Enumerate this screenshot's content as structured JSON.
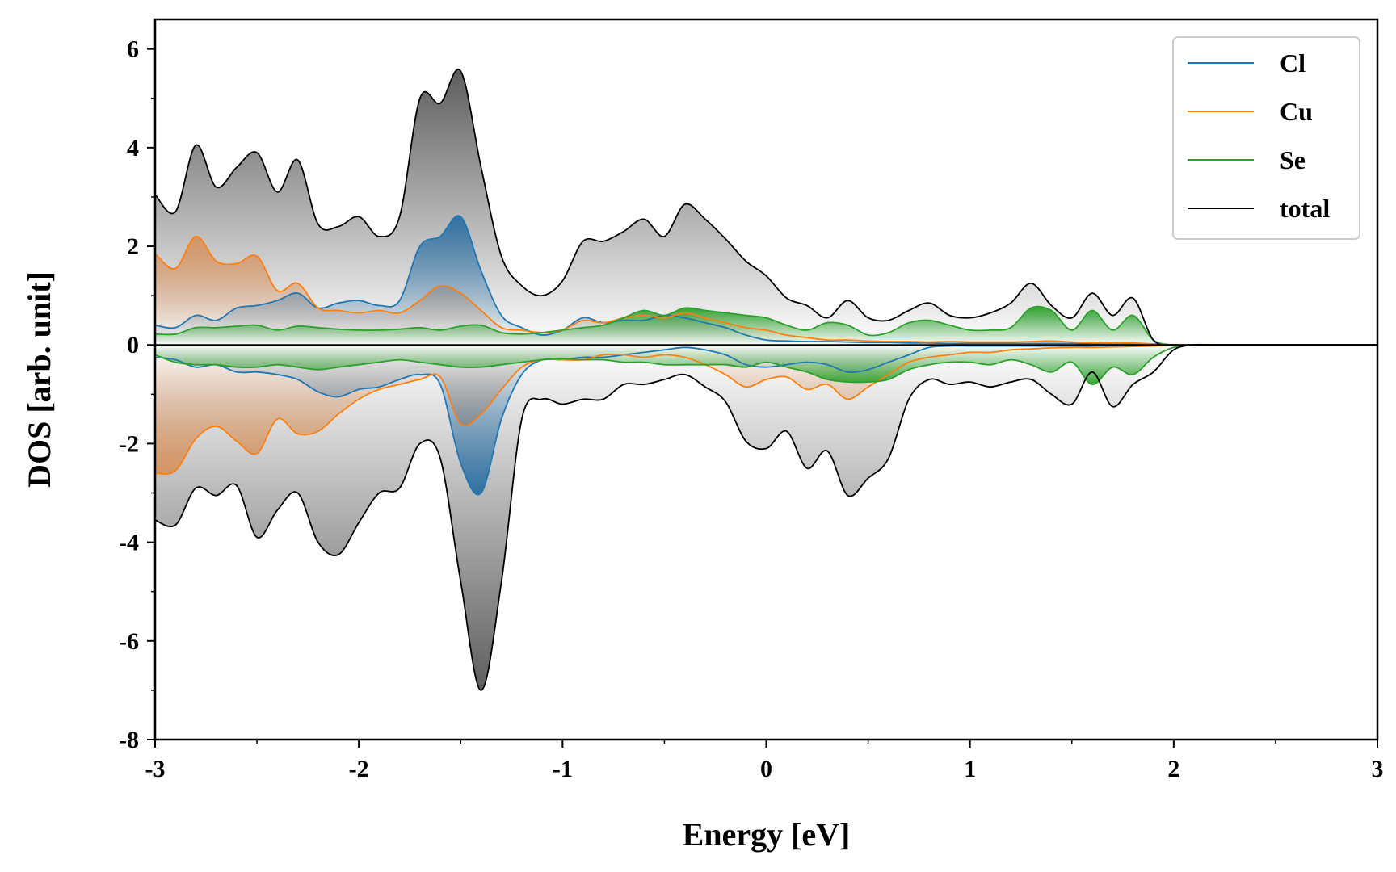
{
  "chart_data": {
    "type": "area",
    "xlabel": "Energy [eV]",
    "ylabel": "DOS [arb. unit]",
    "xlim": [
      -3,
      3
    ],
    "ylim": [
      -8,
      6.6
    ],
    "x_ticks": [
      -3,
      -2,
      -1,
      0,
      1,
      2,
      3
    ],
    "x_tick_labels": [
      "-3",
      "-2",
      "-1",
      "0",
      "1",
      "2",
      "3"
    ],
    "y_ticks": [
      -8,
      -6,
      -4,
      -2,
      0,
      2,
      4,
      6
    ],
    "y_tick_labels": [
      "-8",
      "-6",
      "-4",
      "-2",
      "0",
      "2",
      "4",
      "6"
    ],
    "legend_position": "top-right",
    "x": [
      -3.0,
      -2.9,
      -2.8,
      -2.7,
      -2.6,
      -2.5,
      -2.4,
      -2.3,
      -2.2,
      -2.1,
      -2.0,
      -1.9,
      -1.8,
      -1.7,
      -1.6,
      -1.5,
      -1.4,
      -1.3,
      -1.2,
      -1.1,
      -1.0,
      -0.9,
      -0.8,
      -0.7,
      -0.6,
      -0.5,
      -0.4,
      -0.3,
      -0.2,
      -0.1,
      0.0,
      0.1,
      0.2,
      0.3,
      0.4,
      0.5,
      0.6,
      0.7,
      0.8,
      0.9,
      1.0,
      1.1,
      1.2,
      1.3,
      1.4,
      1.5,
      1.6,
      1.7,
      1.8,
      1.9,
      2.0,
      2.1,
      2.2,
      2.5,
      3.0
    ],
    "series": [
      {
        "name": "Cl",
        "color": "#1f77b4",
        "up": [
          0.4,
          0.35,
          0.6,
          0.5,
          0.75,
          0.8,
          0.9,
          1.05,
          0.75,
          0.85,
          0.9,
          0.8,
          0.9,
          2.0,
          2.2,
          2.6,
          1.5,
          0.6,
          0.35,
          0.2,
          0.3,
          0.55,
          0.45,
          0.5,
          0.5,
          0.6,
          0.55,
          0.45,
          0.35,
          0.2,
          0.1,
          0.08,
          0.07,
          0.07,
          0.06,
          0.05,
          0.05,
          0.04,
          0.04,
          0.03,
          0.03,
          0.03,
          0.03,
          0.03,
          0.03,
          0.03,
          0.02,
          0.02,
          0.02,
          0.01,
          0.0,
          0.0,
          0.0,
          0.0,
          0.0
        ],
        "down": [
          -0.25,
          -0.3,
          -0.45,
          -0.4,
          -0.55,
          -0.55,
          -0.6,
          -0.7,
          -0.95,
          -1.05,
          -0.9,
          -0.85,
          -0.7,
          -0.6,
          -0.8,
          -2.4,
          -3.0,
          -1.5,
          -0.6,
          -0.3,
          -0.3,
          -0.25,
          -0.25,
          -0.2,
          -0.15,
          -0.1,
          -0.05,
          -0.1,
          -0.2,
          -0.4,
          -0.45,
          -0.4,
          -0.35,
          -0.4,
          -0.55,
          -0.5,
          -0.35,
          -0.2,
          -0.05,
          -0.02,
          -0.02,
          -0.02,
          -0.02,
          -0.02,
          -0.02,
          -0.02,
          -0.02,
          -0.01,
          -0.01,
          -0.01,
          0.0,
          0.0,
          0.0,
          0.0,
          0.0
        ]
      },
      {
        "name": "Cu",
        "color": "#ff7f0e",
        "up": [
          1.85,
          1.55,
          2.2,
          1.7,
          1.65,
          1.8,
          1.1,
          1.25,
          0.75,
          0.7,
          0.65,
          0.7,
          0.65,
          0.9,
          1.2,
          1.05,
          0.7,
          0.35,
          0.3,
          0.25,
          0.3,
          0.5,
          0.45,
          0.55,
          0.6,
          0.55,
          0.65,
          0.55,
          0.45,
          0.35,
          0.3,
          0.2,
          0.15,
          0.1,
          0.1,
          0.08,
          0.07,
          0.07,
          0.06,
          0.07,
          0.06,
          0.06,
          0.06,
          0.07,
          0.08,
          0.06,
          0.05,
          0.04,
          0.04,
          0.02,
          0.0,
          0.0,
          0.0,
          0.0,
          0.0
        ],
        "down": [
          -2.6,
          -2.55,
          -1.9,
          -1.65,
          -1.95,
          -2.2,
          -1.5,
          -1.8,
          -1.75,
          -1.4,
          -1.1,
          -0.9,
          -0.8,
          -0.7,
          -0.65,
          -1.6,
          -1.4,
          -0.9,
          -0.45,
          -0.3,
          -0.3,
          -0.3,
          -0.2,
          -0.2,
          -0.25,
          -0.2,
          -0.25,
          -0.4,
          -0.6,
          -0.85,
          -0.7,
          -0.65,
          -0.9,
          -0.8,
          -1.1,
          -0.85,
          -0.6,
          -0.35,
          -0.25,
          -0.2,
          -0.15,
          -0.15,
          -0.1,
          -0.08,
          -0.06,
          -0.05,
          -0.05,
          -0.04,
          -0.03,
          -0.02,
          0.0,
          0.0,
          0.0,
          0.0,
          0.0
        ]
      },
      {
        "name": "Se",
        "color": "#2ca02c",
        "up": [
          0.22,
          0.22,
          0.35,
          0.35,
          0.38,
          0.4,
          0.3,
          0.38,
          0.35,
          0.32,
          0.3,
          0.3,
          0.32,
          0.35,
          0.3,
          0.38,
          0.4,
          0.25,
          0.22,
          0.25,
          0.3,
          0.35,
          0.4,
          0.55,
          0.7,
          0.6,
          0.75,
          0.7,
          0.65,
          0.6,
          0.55,
          0.4,
          0.3,
          0.45,
          0.4,
          0.2,
          0.25,
          0.45,
          0.5,
          0.4,
          0.3,
          0.3,
          0.35,
          0.75,
          0.7,
          0.3,
          0.7,
          0.3,
          0.6,
          0.1,
          0.0,
          0.0,
          0.0,
          0.0,
          0.0
        ],
        "down": [
          -0.2,
          -0.35,
          -0.4,
          -0.4,
          -0.45,
          -0.45,
          -0.4,
          -0.45,
          -0.5,
          -0.45,
          -0.4,
          -0.35,
          -0.3,
          -0.35,
          -0.4,
          -0.45,
          -0.45,
          -0.4,
          -0.35,
          -0.3,
          -0.28,
          -0.3,
          -0.3,
          -0.35,
          -0.35,
          -0.4,
          -0.4,
          -0.4,
          -0.4,
          -0.45,
          -0.35,
          -0.45,
          -0.55,
          -0.7,
          -0.75,
          -0.75,
          -0.7,
          -0.5,
          -0.4,
          -0.35,
          -0.35,
          -0.4,
          -0.3,
          -0.4,
          -0.55,
          -0.35,
          -0.8,
          -0.45,
          -0.6,
          -0.25,
          -0.05,
          0.0,
          0.0,
          0.0,
          0.0
        ]
      },
      {
        "name": "total",
        "color": "#000000",
        "up": [
          3.05,
          2.7,
          4.05,
          3.2,
          3.6,
          3.9,
          3.1,
          3.75,
          2.45,
          2.4,
          2.6,
          2.2,
          2.6,
          5.0,
          4.9,
          5.55,
          3.6,
          1.8,
          1.2,
          1.0,
          1.3,
          2.1,
          2.1,
          2.3,
          2.55,
          2.2,
          2.85,
          2.55,
          2.15,
          1.7,
          1.4,
          0.95,
          0.8,
          0.55,
          0.9,
          0.55,
          0.5,
          0.7,
          0.85,
          0.6,
          0.55,
          0.65,
          0.85,
          1.25,
          0.8,
          0.55,
          1.05,
          0.6,
          0.95,
          0.1,
          0.0,
          0.0,
          0.0,
          0.0,
          0.0
        ],
        "down": [
          -3.55,
          -3.65,
          -2.9,
          -3.05,
          -2.85,
          -3.9,
          -3.35,
          -3.0,
          -4.0,
          -4.25,
          -3.6,
          -3.0,
          -2.9,
          -2.0,
          -2.3,
          -4.8,
          -7.0,
          -4.8,
          -1.5,
          -1.1,
          -1.2,
          -1.1,
          -1.1,
          -0.8,
          -0.8,
          -0.7,
          -0.6,
          -0.85,
          -1.15,
          -1.95,
          -2.1,
          -1.75,
          -2.5,
          -2.15,
          -3.05,
          -2.7,
          -2.3,
          -1.1,
          -0.7,
          -0.8,
          -0.75,
          -0.85,
          -0.75,
          -0.7,
          -1.0,
          -1.2,
          -0.55,
          -1.25,
          -0.8,
          -0.55,
          -0.1,
          0.0,
          0.0,
          0.0,
          0.0
        ]
      }
    ]
  }
}
